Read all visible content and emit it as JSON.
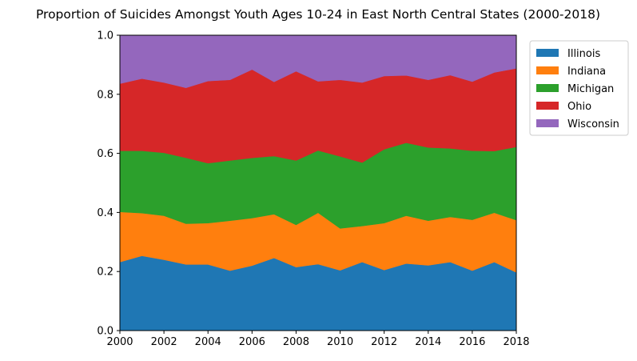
{
  "chart_data": {
    "type": "area",
    "stacked": true,
    "normalized": true,
    "title": "Proportion of Suicides Amongst Youth Ages 10-24 in East North Central States (2000-2018)",
    "xlabel": "",
    "ylabel": "",
    "xlim": [
      2000,
      2018
    ],
    "ylim": [
      0,
      1
    ],
    "x": [
      2000,
      2001,
      2002,
      2003,
      2004,
      2005,
      2006,
      2007,
      2008,
      2009,
      2010,
      2011,
      2012,
      2013,
      2014,
      2015,
      2016,
      2017,
      2018
    ],
    "x_ticks": [
      "2000",
      "2002",
      "2004",
      "2006",
      "2008",
      "2010",
      "2012",
      "2014",
      "2016",
      "2018"
    ],
    "y_ticks": [
      "0.0",
      "0.2",
      "0.4",
      "0.6",
      "0.8",
      "1.0"
    ],
    "grid": false,
    "legend_position": "outside-upper-right",
    "series": [
      {
        "name": "Illinois",
        "color": "#1f77b4",
        "values": [
          0.232,
          0.253,
          0.24,
          0.224,
          0.224,
          0.203,
          0.22,
          0.246,
          0.215,
          0.225,
          0.204,
          0.232,
          0.205,
          0.227,
          0.221,
          0.232,
          0.203,
          0.232,
          0.197
        ]
      },
      {
        "name": "Indiana",
        "color": "#ff7f0e",
        "values": [
          0.17,
          0.145,
          0.149,
          0.138,
          0.14,
          0.169,
          0.161,
          0.148,
          0.143,
          0.174,
          0.142,
          0.122,
          0.159,
          0.162,
          0.151,
          0.153,
          0.172,
          0.167,
          0.177
        ]
      },
      {
        "name": "Michigan",
        "color": "#2ca02c",
        "values": [
          0.207,
          0.211,
          0.213,
          0.223,
          0.203,
          0.204,
          0.204,
          0.197,
          0.218,
          0.211,
          0.244,
          0.215,
          0.25,
          0.247,
          0.248,
          0.232,
          0.234,
          0.209,
          0.248
        ]
      },
      {
        "name": "Ohio",
        "color": "#d62728",
        "values": [
          0.227,
          0.244,
          0.238,
          0.237,
          0.278,
          0.273,
          0.299,
          0.251,
          0.302,
          0.234,
          0.259,
          0.271,
          0.248,
          0.228,
          0.229,
          0.248,
          0.234,
          0.266,
          0.266
        ]
      },
      {
        "name": "Wisconsin",
        "color": "#9467bd",
        "values": [
          0.164,
          0.147,
          0.16,
          0.178,
          0.155,
          0.151,
          0.116,
          0.158,
          0.122,
          0.156,
          0.151,
          0.16,
          0.138,
          0.136,
          0.151,
          0.135,
          0.157,
          0.126,
          0.112
        ]
      }
    ]
  }
}
